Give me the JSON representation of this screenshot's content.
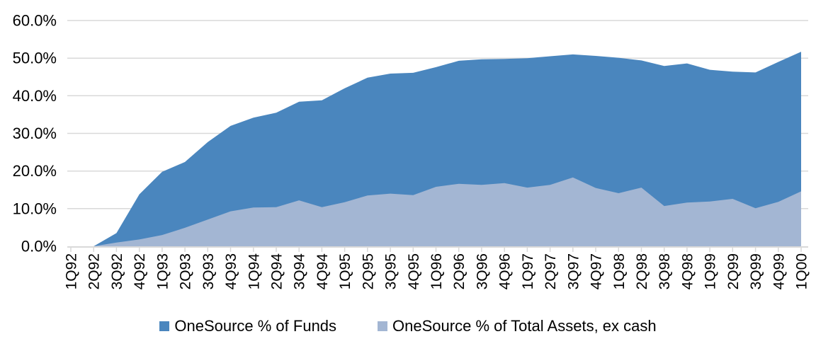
{
  "chart_data": {
    "type": "area",
    "title": "",
    "xlabel": "",
    "ylabel": "",
    "categories": [
      "1Q92",
      "2Q92",
      "3Q92",
      "4Q92",
      "1Q93",
      "2Q93",
      "3Q93",
      "4Q93",
      "1Q94",
      "2Q94",
      "3Q94",
      "4Q94",
      "1Q95",
      "2Q95",
      "3Q95",
      "4Q95",
      "1Q96",
      "2Q96",
      "3Q96",
      "4Q96",
      "1Q97",
      "2Q97",
      "3Q97",
      "4Q97",
      "1Q98",
      "2Q98",
      "3Q98",
      "4Q98",
      "1Q99",
      "2Q99",
      "3Q99",
      "4Q99",
      "1Q00"
    ],
    "series": [
      {
        "name": "OneSource % of Funds",
        "color": "#4A86BE",
        "values": [
          0.0,
          0.0,
          3.5,
          13.8,
          19.8,
          22.4,
          27.7,
          32.0,
          34.2,
          35.5,
          38.4,
          38.8,
          42.0,
          44.8,
          45.9,
          46.1,
          47.6,
          49.3,
          49.7,
          49.8,
          50.0,
          50.5,
          51.0,
          50.6,
          50.1,
          49.4,
          47.9,
          48.6,
          46.9,
          46.4,
          46.2,
          49.0,
          51.7
        ]
      },
      {
        "name": "OneSource % of Total Assets, ex cash",
        "color": "#A3B6D3",
        "values": [
          0.0,
          0.0,
          1.0,
          1.8,
          3.0,
          4.9,
          7.1,
          9.3,
          10.3,
          10.4,
          12.2,
          10.4,
          11.7,
          13.5,
          14.0,
          13.6,
          15.8,
          16.6,
          16.3,
          16.8,
          15.6,
          16.3,
          18.3,
          15.5,
          14.1,
          15.6,
          10.7,
          11.6,
          11.9,
          12.6,
          10.1,
          11.8,
          14.6
        ]
      }
    ],
    "ylim": [
      0,
      60
    ],
    "ytick_step": 10,
    "ytick_labels": [
      "0.0%",
      "10.0%",
      "20.0%",
      "30.0%",
      "40.0%",
      "50.0%",
      "60.0%"
    ],
    "grid": true,
    "gridline_color": "#D9D9D9",
    "axis_line_color": "#D9D9D9",
    "legend_position": "bottom",
    "x_labels_rotated": true
  }
}
